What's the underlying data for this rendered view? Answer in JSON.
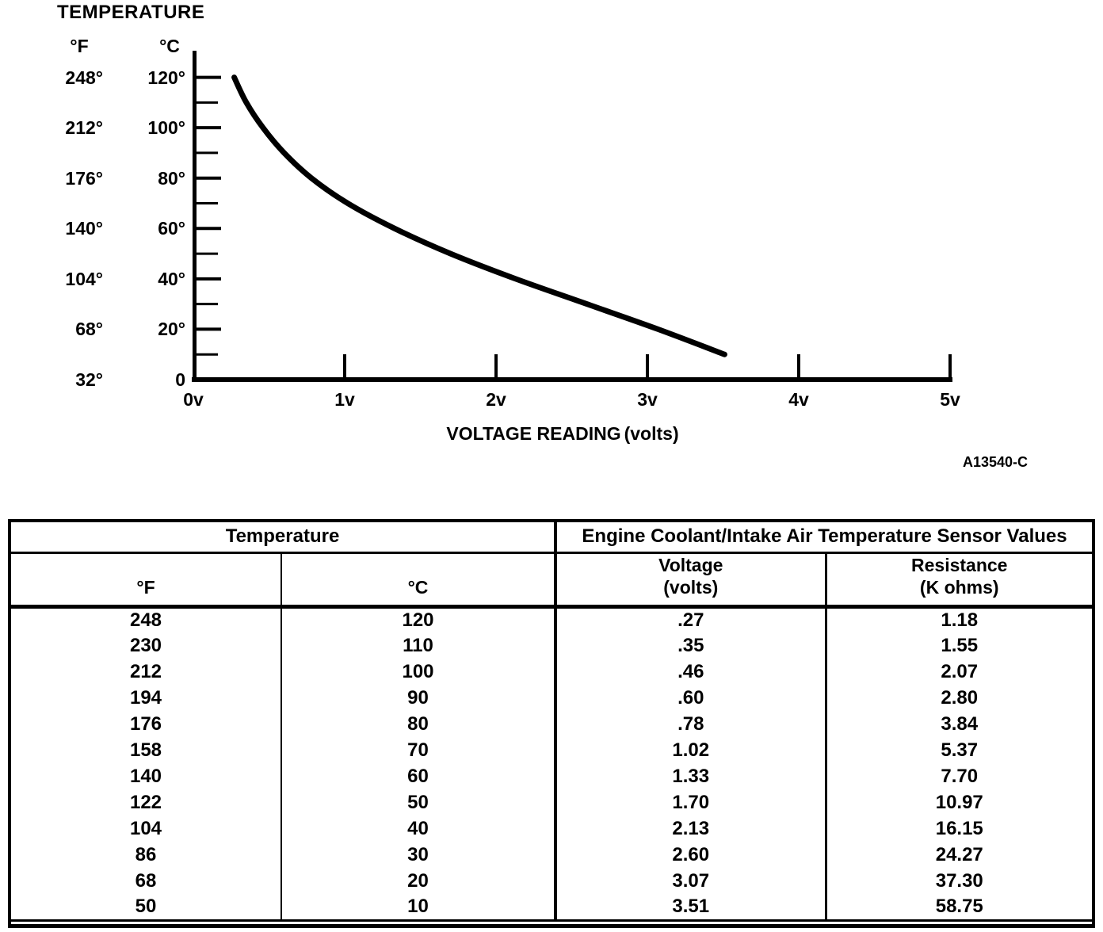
{
  "figure": {
    "title": "TEMPERATURE",
    "code": "A13540-C",
    "y_axis": {
      "f_header": "°F",
      "c_header": "°C",
      "rows": [
        {
          "f": "248°",
          "c": "120°",
          "c_value": 120
        },
        {
          "f": "212°",
          "c": "100°",
          "c_value": 100
        },
        {
          "f": "176°",
          "c": "80°",
          "c_value": 80
        },
        {
          "f": "140°",
          "c": "60°",
          "c_value": 60
        },
        {
          "f": "104°",
          "c": "40°",
          "c_value": 40
        },
        {
          "f": "68°",
          "c": "20°",
          "c_value": 20
        },
        {
          "f": "32°",
          "c": "0",
          "c_value": 0
        }
      ]
    },
    "x_axis": {
      "title": "VOLTAGE READING",
      "unit": "(volts)",
      "tick_labels": [
        "0v",
        "1v",
        "2v",
        "3v",
        "4v",
        "5v"
      ]
    }
  },
  "chart_data": {
    "type": "line",
    "title": "TEMPERATURE",
    "xlabel": "VOLTAGE READING (volts)",
    "ylabel": "TEMPERATURE (°C left ticks, °F outer labels)",
    "x_volts": [
      0.27,
      0.35,
      0.46,
      0.6,
      0.78,
      1.02,
      1.33,
      1.7,
      2.13,
      2.6,
      3.07,
      3.51
    ],
    "y_celsius": [
      120,
      110,
      100,
      90,
      80,
      70,
      60,
      50,
      40,
      30,
      20,
      10
    ],
    "y_fahrenheit": [
      248,
      230,
      212,
      194,
      176,
      158,
      140,
      122,
      104,
      86,
      68,
      50
    ],
    "xlim": [
      0,
      5
    ],
    "ylim_celsius": [
      0,
      130
    ],
    "x_tick_labels": [
      "0v",
      "1v",
      "2v",
      "3v",
      "4v",
      "5v"
    ],
    "y_tick_labels_celsius": [
      120,
      100,
      80,
      60,
      40,
      20,
      0
    ],
    "y_minor_tick_step_celsius": 10,
    "grid": false,
    "legend": false
  },
  "table": {
    "group_headers": [
      {
        "label": "Temperature",
        "colspan": 2
      },
      {
        "label": "Engine Coolant/Intake Air Temperature Sensor Values",
        "colspan": 2
      }
    ],
    "columns": [
      {
        "label": "°F"
      },
      {
        "label": "°C"
      },
      {
        "label": "Voltage",
        "sub": "(volts)"
      },
      {
        "label": "Resistance",
        "sub": "(K ohms)"
      }
    ],
    "rows": [
      [
        "248",
        "120",
        ".27",
        "1.18"
      ],
      [
        "230",
        "110",
        ".35",
        "1.55"
      ],
      [
        "212",
        "100",
        ".46",
        "2.07"
      ],
      [
        "194",
        "90",
        ".60",
        "2.80"
      ],
      [
        "176",
        "80",
        ".78",
        "3.84"
      ],
      [
        "158",
        "70",
        "1.02",
        "5.37"
      ],
      [
        "140",
        "60",
        "1.33",
        "7.70"
      ],
      [
        "122",
        "50",
        "1.70",
        "10.97"
      ],
      [
        "104",
        "40",
        "2.13",
        "16.15"
      ],
      [
        "86",
        "30",
        "2.60",
        "24.27"
      ],
      [
        "68",
        "20",
        "3.07",
        "37.30"
      ],
      [
        "50",
        "10",
        "3.51",
        "58.75"
      ]
    ]
  }
}
